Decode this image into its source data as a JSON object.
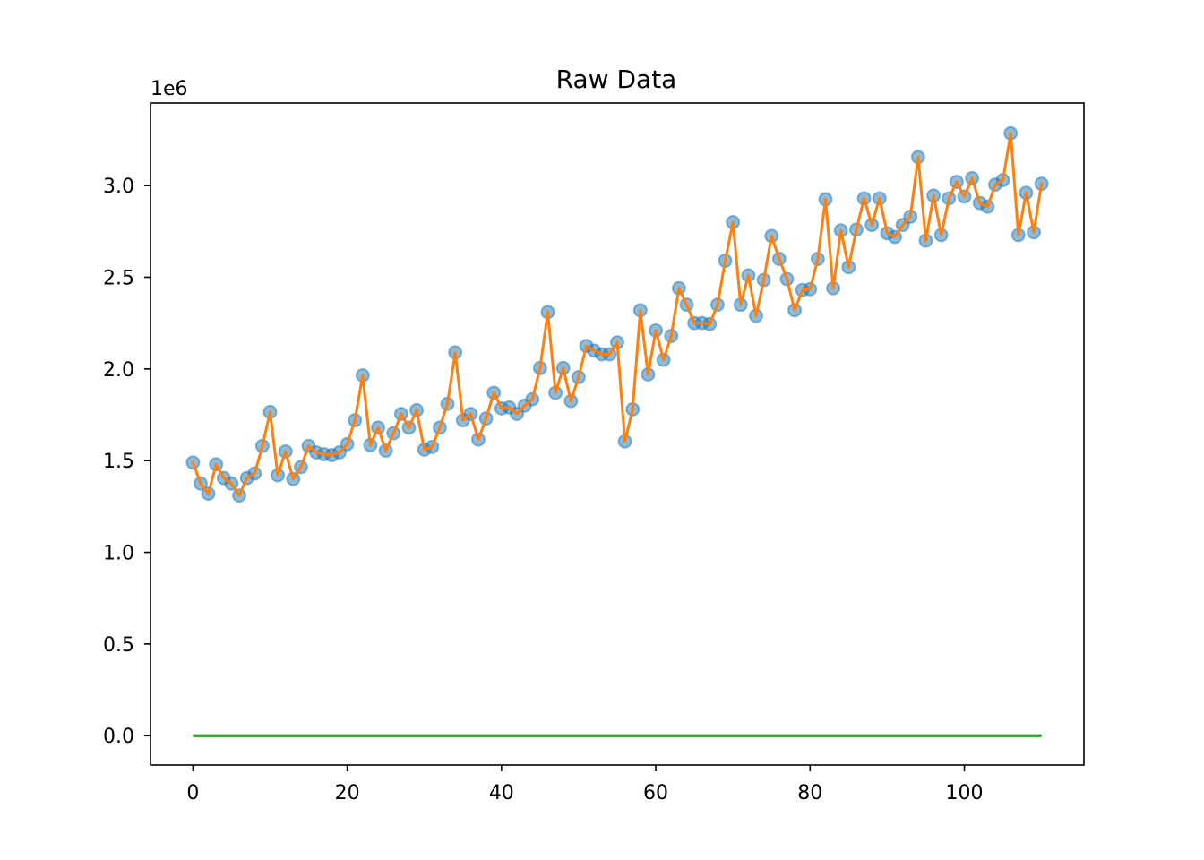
{
  "chart_data": {
    "type": "line",
    "title": "Raw Data",
    "xlabel": "",
    "ylabel": "",
    "y_offset_label": "1e6",
    "xlim": [
      -5.5,
      115.5
    ],
    "ylim": [
      -160000,
      3450000
    ],
    "x_ticks": [
      0,
      20,
      40,
      60,
      80,
      100
    ],
    "x_tick_labels": [
      "0",
      "20",
      "40",
      "60",
      "80",
      "100"
    ],
    "y_ticks": [
      0,
      500000,
      1000000,
      1500000,
      2000000,
      2500000,
      3000000
    ],
    "y_tick_labels": [
      "0.0",
      "0.5",
      "1.0",
      "1.5",
      "2.0",
      "2.5",
      "3.0"
    ],
    "grid": false,
    "colors": {
      "scatter": "#1f77b4",
      "line": "#ff7f0e",
      "baseline": "#2ca02c"
    },
    "x": [
      0,
      1,
      2,
      3,
      4,
      5,
      6,
      7,
      8,
      9,
      10,
      11,
      12,
      13,
      14,
      15,
      16,
      17,
      18,
      19,
      20,
      21,
      22,
      23,
      24,
      25,
      26,
      27,
      28,
      29,
      30,
      31,
      32,
      33,
      34,
      35,
      36,
      37,
      38,
      39,
      40,
      41,
      42,
      43,
      44,
      45,
      46,
      47,
      48,
      49,
      50,
      51,
      52,
      53,
      54,
      55,
      56,
      57,
      58,
      59,
      60,
      61,
      62,
      63,
      64,
      65,
      66,
      67,
      68,
      69,
      70,
      71,
      72,
      73,
      74,
      75,
      76,
      77,
      78,
      79,
      80,
      81,
      82,
      83,
      84,
      85,
      86,
      87,
      88,
      89,
      90,
      91,
      92,
      93,
      94,
      95,
      96,
      97,
      98,
      99,
      100,
      101,
      102,
      103,
      104,
      105,
      106,
      107,
      108,
      109,
      110
    ],
    "series": [
      {
        "style": "scatter",
        "values": [
          1490000,
          1375000,
          1320000,
          1480000,
          1405000,
          1375000,
          1310000,
          1405000,
          1430000,
          1580000,
          1765000,
          1420000,
          1550000,
          1400000,
          1465000,
          1580000,
          1545000,
          1535000,
          1530000,
          1545000,
          1590000,
          1720000,
          1965000,
          1585000,
          1680000,
          1555000,
          1650000,
          1755000,
          1680000,
          1775000,
          1560000,
          1575000,
          1680000,
          1810000,
          2090000,
          1720000,
          1755000,
          1615000,
          1730000,
          1870000,
          1785000,
          1790000,
          1755000,
          1800000,
          1835000,
          2005000,
          2310000,
          1870000,
          2005000,
          1825000,
          1955000,
          2125000,
          2100000,
          2080000,
          2080000,
          2145000,
          1605000,
          1780000,
          2320000,
          1970000,
          2210000,
          2050000,
          2180000,
          2440000,
          2350000,
          2250000,
          2250000,
          2245000,
          2350000,
          2590000,
          2800000,
          2350000,
          2510000,
          2290000,
          2485000,
          2725000,
          2600000,
          2490000,
          2320000,
          2430000,
          2435000,
          2600000,
          2925000,
          2440000,
          2755000,
          2555000,
          2760000,
          2930000,
          2785000,
          2930000,
          2740000,
          2720000,
          2785000,
          2830000,
          3155000,
          2700000,
          2945000,
          2730000,
          2930000,
          3020000,
          2940000,
          3040000,
          2905000,
          2885000,
          3005000,
          3030000,
          3285000,
          2730000,
          2960000,
          2745000,
          3010000
        ]
      },
      {
        "style": "line",
        "values": [
          1490000,
          1375000,
          1320000,
          1480000,
          1405000,
          1375000,
          1310000,
          1405000,
          1430000,
          1580000,
          1765000,
          1420000,
          1550000,
          1400000,
          1465000,
          1580000,
          1545000,
          1535000,
          1530000,
          1545000,
          1590000,
          1720000,
          1965000,
          1585000,
          1680000,
          1555000,
          1650000,
          1755000,
          1680000,
          1775000,
          1560000,
          1575000,
          1680000,
          1810000,
          2090000,
          1720000,
          1755000,
          1615000,
          1730000,
          1870000,
          1785000,
          1790000,
          1755000,
          1800000,
          1835000,
          2005000,
          2310000,
          1870000,
          2005000,
          1825000,
          1955000,
          2125000,
          2100000,
          2080000,
          2080000,
          2145000,
          1605000,
          1780000,
          2320000,
          1970000,
          2210000,
          2050000,
          2180000,
          2440000,
          2350000,
          2250000,
          2250000,
          2245000,
          2350000,
          2590000,
          2800000,
          2350000,
          2510000,
          2290000,
          2485000,
          2725000,
          2600000,
          2490000,
          2320000,
          2430000,
          2435000,
          2600000,
          2925000,
          2440000,
          2755000,
          2555000,
          2760000,
          2930000,
          2785000,
          2930000,
          2740000,
          2720000,
          2785000,
          2830000,
          3155000,
          2700000,
          2945000,
          2730000,
          2930000,
          3020000,
          2940000,
          3040000,
          2905000,
          2885000,
          3005000,
          3030000,
          3285000,
          2730000,
          2960000,
          2745000,
          3010000
        ]
      },
      {
        "style": "baseline",
        "x_range": [
          0,
          110
        ],
        "value": 0
      }
    ]
  }
}
